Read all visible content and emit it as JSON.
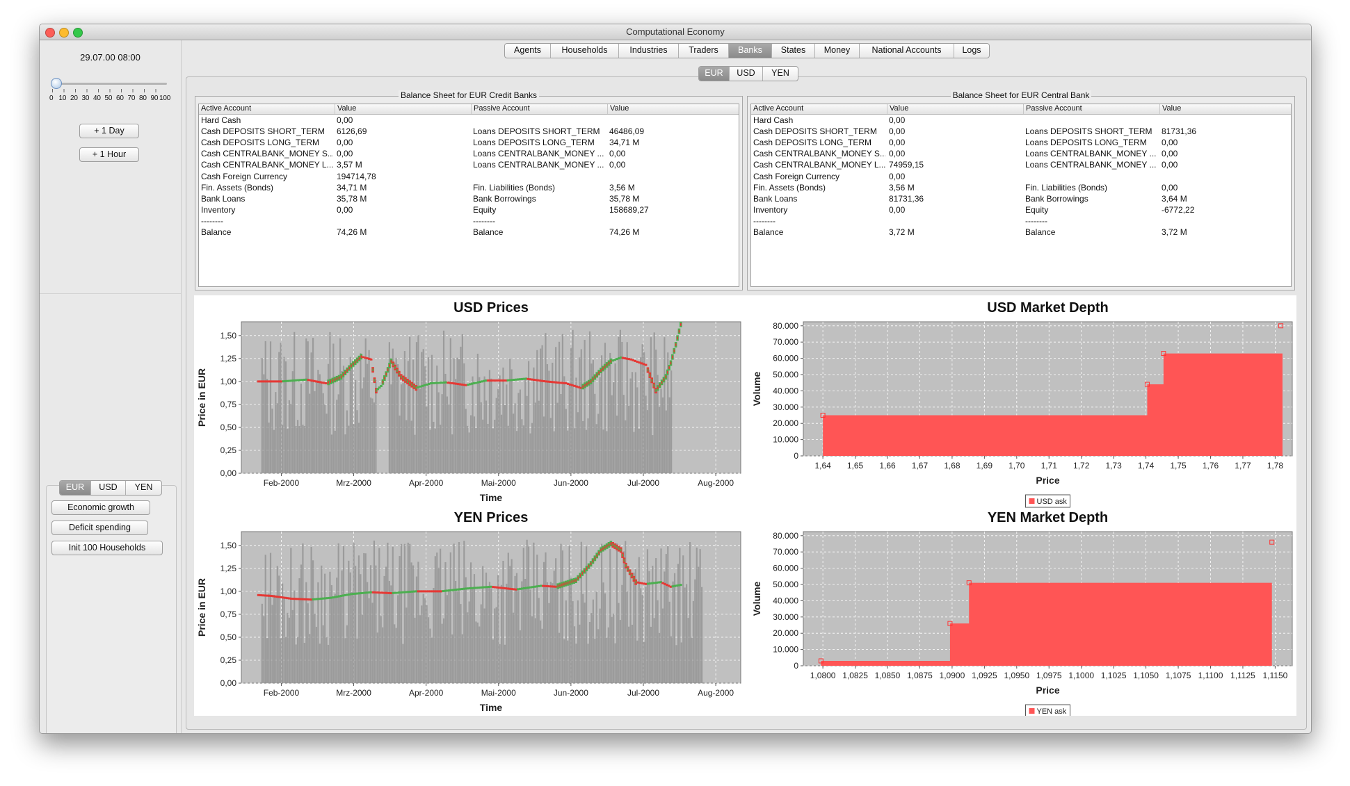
{
  "window": {
    "title": "Computational Economy"
  },
  "left": {
    "clock": "29.07.00 08:00",
    "slider_labels": [
      "0",
      "10",
      "20",
      "30",
      "40",
      "50",
      "60",
      "70",
      "80",
      "90",
      "100"
    ],
    "slider_value": 0,
    "buttons": {
      "day": "+ 1 Day",
      "hour": "+ 1 Hour"
    },
    "currency_tabs": [
      "EUR",
      "USD",
      "YEN"
    ],
    "currency_selected": "EUR",
    "actions": {
      "economic_growth": "Economic growth",
      "deficit_spending": "Deficit spending",
      "init_households": "Init 100 Households"
    }
  },
  "tabs": {
    "items": [
      "Agents",
      "Households",
      "Industries",
      "Traders",
      "Banks",
      "States",
      "Money",
      "National Accounts",
      "Logs"
    ],
    "selected": "Banks"
  },
  "currency_tabs": {
    "items": [
      "EUR",
      "USD",
      "YEN"
    ],
    "selected": "EUR"
  },
  "credit_banks": {
    "title": "Balance Sheet for EUR Credit Banks",
    "headers": [
      "Active Account",
      "Value",
      "Passive Account",
      "Value"
    ],
    "rows": [
      [
        "Hard Cash",
        "0,00",
        "",
        ""
      ],
      [
        "Cash DEPOSITS SHORT_TERM",
        "6126,69",
        "Loans DEPOSITS SHORT_TERM",
        "46486,09"
      ],
      [
        "Cash DEPOSITS LONG_TERM",
        "0,00",
        "Loans DEPOSITS LONG_TERM",
        "34,71 M"
      ],
      [
        "Cash CENTRALBANK_MONEY S...",
        "0,00",
        "Loans CENTRALBANK_MONEY ...",
        "0,00"
      ],
      [
        "Cash CENTRALBANK_MONEY L...",
        "3,57 M",
        "Loans CENTRALBANK_MONEY ...",
        "0,00"
      ],
      [
        "Cash Foreign Currency",
        "194714,78",
        "",
        ""
      ],
      [
        "Fin. Assets (Bonds)",
        "34,71 M",
        "Fin. Liabilities (Bonds)",
        "3,56 M"
      ],
      [
        "Bank Loans",
        "35,78 M",
        "Bank Borrowings",
        "35,78 M"
      ],
      [
        "Inventory",
        "0,00",
        "Equity",
        "158689,27"
      ],
      [
        "--------",
        "",
        "--------",
        ""
      ],
      [
        "Balance",
        "74,26 M",
        "Balance",
        "74,26 M"
      ]
    ]
  },
  "central_bank": {
    "title": "Balance Sheet for EUR Central Bank",
    "headers": [
      "Active Account",
      "Value",
      "Passive Account",
      "Value"
    ],
    "rows": [
      [
        "Hard Cash",
        "0,00",
        "",
        ""
      ],
      [
        "Cash DEPOSITS SHORT_TERM",
        "0,00",
        "Loans DEPOSITS SHORT_TERM",
        "81731,36"
      ],
      [
        "Cash DEPOSITS LONG_TERM",
        "0,00",
        "Loans DEPOSITS LONG_TERM",
        "0,00"
      ],
      [
        "Cash CENTRALBANK_MONEY S...",
        "0,00",
        "Loans CENTRALBANK_MONEY ...",
        "0,00"
      ],
      [
        "Cash CENTRALBANK_MONEY L...",
        "74959,15",
        "Loans CENTRALBANK_MONEY ...",
        "0,00"
      ],
      [
        "Cash Foreign Currency",
        "0,00",
        "",
        ""
      ],
      [
        "Fin. Assets (Bonds)",
        "3,56 M",
        "Fin. Liabilities (Bonds)",
        "0,00"
      ],
      [
        "Bank Loans",
        "81731,36",
        "Bank Borrowings",
        "3,64 M"
      ],
      [
        "Inventory",
        "0,00",
        "Equity",
        "-6772,22"
      ],
      [
        "--------",
        "",
        "--------",
        ""
      ],
      [
        "Balance",
        "3,72 M",
        "Balance",
        "3,72 M"
      ]
    ]
  },
  "chart_data": [
    {
      "type": "candlestick",
      "title": "USD Prices",
      "xlabel": "Time",
      "ylabel": "Price in EUR",
      "ylim": [
        0,
        1.65
      ],
      "yticks": [
        "0,00",
        "0,25",
        "0,50",
        "0,75",
        "1,00",
        "1,25",
        "1,50"
      ],
      "xticks": [
        "Feb-2000",
        "Mrz-2000",
        "Apr-2000",
        "Mai-2000",
        "Jun-2000",
        "Jul-2000",
        "Aug-2000"
      ],
      "x": [
        0.03,
        0.08,
        0.13,
        0.17,
        0.2,
        0.22,
        0.24,
        0.26,
        0.27,
        0.28,
        0.29,
        0.3,
        0.32,
        0.35,
        0.38,
        0.41,
        0.45,
        0.49,
        0.53,
        0.57,
        0.61,
        0.65,
        0.68,
        0.7,
        0.72,
        0.74,
        0.76,
        0.78,
        0.81,
        0.83,
        0.85,
        0.86,
        0.87,
        0.88
      ],
      "close": [
        1.0,
        1.0,
        1.02,
        0.98,
        1.05,
        1.17,
        1.27,
        1.24,
        0.9,
        0.95,
        1.08,
        1.22,
        1.05,
        0.93,
        0.98,
        0.99,
        0.96,
        1.01,
        1.01,
        1.03,
        1.0,
        0.98,
        0.93,
        1.0,
        1.12,
        1.22,
        1.26,
        1.24,
        1.18,
        0.9,
        1.05,
        1.2,
        1.4,
        1.62
      ],
      "volume_note": "grey volume bars behind the price series",
      "colors": {
        "up": "#4caf50",
        "down": "#e53935",
        "volume": "#8f8f8f",
        "plot_bg": "#c0c0c0"
      }
    },
    {
      "type": "step-area",
      "title": "USD Market Depth",
      "xlabel": "Price",
      "ylabel": "Volume",
      "xlim": [
        1.635,
        1.785
      ],
      "ylim": [
        0,
        80000
      ],
      "xticks": [
        "1,64",
        "1,65",
        "1,66",
        "1,67",
        "1,68",
        "1,69",
        "1,70",
        "1,71",
        "1,72",
        "1,73",
        "1,74",
        "1,75",
        "1,76",
        "1,77",
        "1,78"
      ],
      "yticks": [
        "0",
        "10.000",
        "20.000",
        "30.000",
        "40.000",
        "50.000",
        "60.000",
        "70.000",
        "80.000"
      ],
      "steps": [
        [
          1.641,
          25000
        ],
        [
          1.7405,
          44000
        ],
        [
          1.7455,
          63000
        ],
        [
          1.782,
          63000
        ]
      ],
      "extra_point": [
        1.7815,
        80000
      ],
      "series": [
        {
          "name": "USD ask"
        }
      ],
      "colors": {
        "fill": "#ff5555",
        "plot_bg": "#c0c0c0"
      }
    },
    {
      "type": "candlestick",
      "title": "YEN Prices",
      "xlabel": "Time",
      "ylabel": "Price in EUR",
      "ylim": [
        0,
        1.65
      ],
      "yticks": [
        "0,00",
        "0,25",
        "0,50",
        "0,75",
        "1,00",
        "1,25",
        "1,50"
      ],
      "xticks": [
        "Feb-2000",
        "Mrz-2000",
        "Apr-2000",
        "Mai-2000",
        "Jun-2000",
        "Jul-2000",
        "Aug-2000"
      ],
      "x": [
        0.03,
        0.06,
        0.1,
        0.14,
        0.18,
        0.22,
        0.26,
        0.3,
        0.35,
        0.4,
        0.45,
        0.5,
        0.55,
        0.6,
        0.63,
        0.67,
        0.7,
        0.72,
        0.74,
        0.76,
        0.77,
        0.79,
        0.81,
        0.84,
        0.86,
        0.88
      ],
      "close": [
        0.96,
        0.95,
        0.92,
        0.91,
        0.93,
        0.97,
        0.99,
        0.98,
        1.0,
        1.0,
        1.03,
        1.05,
        1.02,
        1.06,
        1.05,
        1.12,
        1.3,
        1.45,
        1.52,
        1.45,
        1.28,
        1.1,
        1.08,
        1.1,
        1.05,
        1.07
      ],
      "volume_note": "grey volume bars behind the price series",
      "colors": {
        "up": "#4caf50",
        "down": "#e53935",
        "volume": "#8f8f8f",
        "plot_bg": "#c0c0c0"
      }
    },
    {
      "type": "step-area",
      "title": "YEN Market Depth",
      "xlabel": "Price",
      "ylabel": "Volume",
      "xlim": [
        1.08,
        1.116
      ],
      "ylim": [
        0,
        80000
      ],
      "xticks": [
        "1,0800",
        "1,0825",
        "1,0850",
        "1,0875",
        "1,0900",
        "1,0925",
        "1,0950",
        "1,0975",
        "1,1000",
        "1,1025",
        "1,1050",
        "1,1075",
        "1,1100",
        "1,1125",
        "1,1150"
      ],
      "yticks": [
        "0",
        "10.000",
        "20.000",
        "30.000",
        "40.000",
        "50.000",
        "60.000",
        "70.000",
        "80.000"
      ],
      "steps": [
        [
          1.0813,
          3000
        ],
        [
          1.0908,
          26000
        ],
        [
          1.0922,
          51000
        ],
        [
          1.1145,
          51000
        ]
      ],
      "extra_point": [
        1.1145,
        76000
      ],
      "series": [
        {
          "name": "YEN ask"
        }
      ],
      "colors": {
        "fill": "#ff5555",
        "plot_bg": "#c0c0c0"
      }
    }
  ]
}
